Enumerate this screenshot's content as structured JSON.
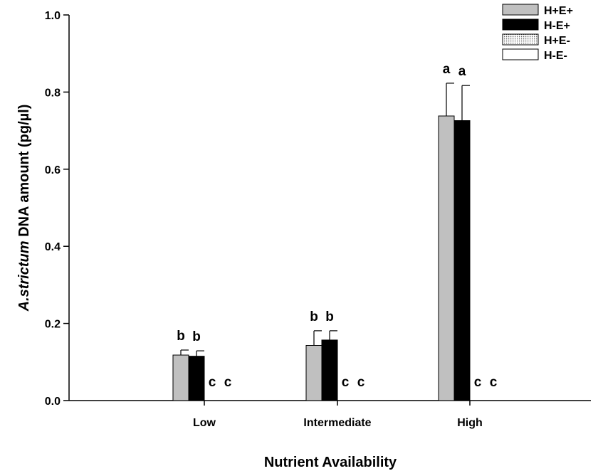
{
  "chart_data": {
    "type": "bar",
    "categories": [
      "Low",
      "Intermediate",
      "High"
    ],
    "xlabel": "Nutrient Availability",
    "ylabel_italic": "A.strictum",
    "ylabel_rest": " DNA amount (pg/µl)",
    "ylim": [
      0,
      1.0
    ],
    "yticks": [
      "0.0",
      "0.2",
      "0.4",
      "0.6",
      "0.8",
      "1.0"
    ],
    "ytick_values": [
      0,
      0.2,
      0.4,
      0.6,
      0.8,
      1.0
    ],
    "grid": false,
    "legend_position": "top-right",
    "series": [
      {
        "name": "H+E+",
        "fill": "#c0c0c0",
        "pattern": "solid",
        "values": [
          0.118,
          0.143,
          0.738
        ],
        "errors": [
          0.013,
          0.038,
          0.085
        ],
        "letters": [
          "b",
          "b",
          "a"
        ]
      },
      {
        "name": "H-E+",
        "fill": "#000000",
        "pattern": "solid",
        "values": [
          0.115,
          0.157,
          0.726
        ],
        "errors": [
          0.014,
          0.024,
          0.091
        ],
        "letters": [
          "b",
          "b",
          "a"
        ]
      },
      {
        "name": "H+E-",
        "fill": "#ffffff",
        "pattern": "dots",
        "values": [
          0,
          0,
          0
        ],
        "errors": [
          0,
          0,
          0
        ],
        "letters": [
          "c",
          "c",
          "c"
        ]
      },
      {
        "name": "H-E-",
        "fill": "#ffffff",
        "pattern": "solid",
        "values": [
          0,
          0,
          0
        ],
        "errors": [
          0,
          0,
          0
        ],
        "letters": [
          "c",
          "c",
          "c"
        ]
      }
    ]
  }
}
